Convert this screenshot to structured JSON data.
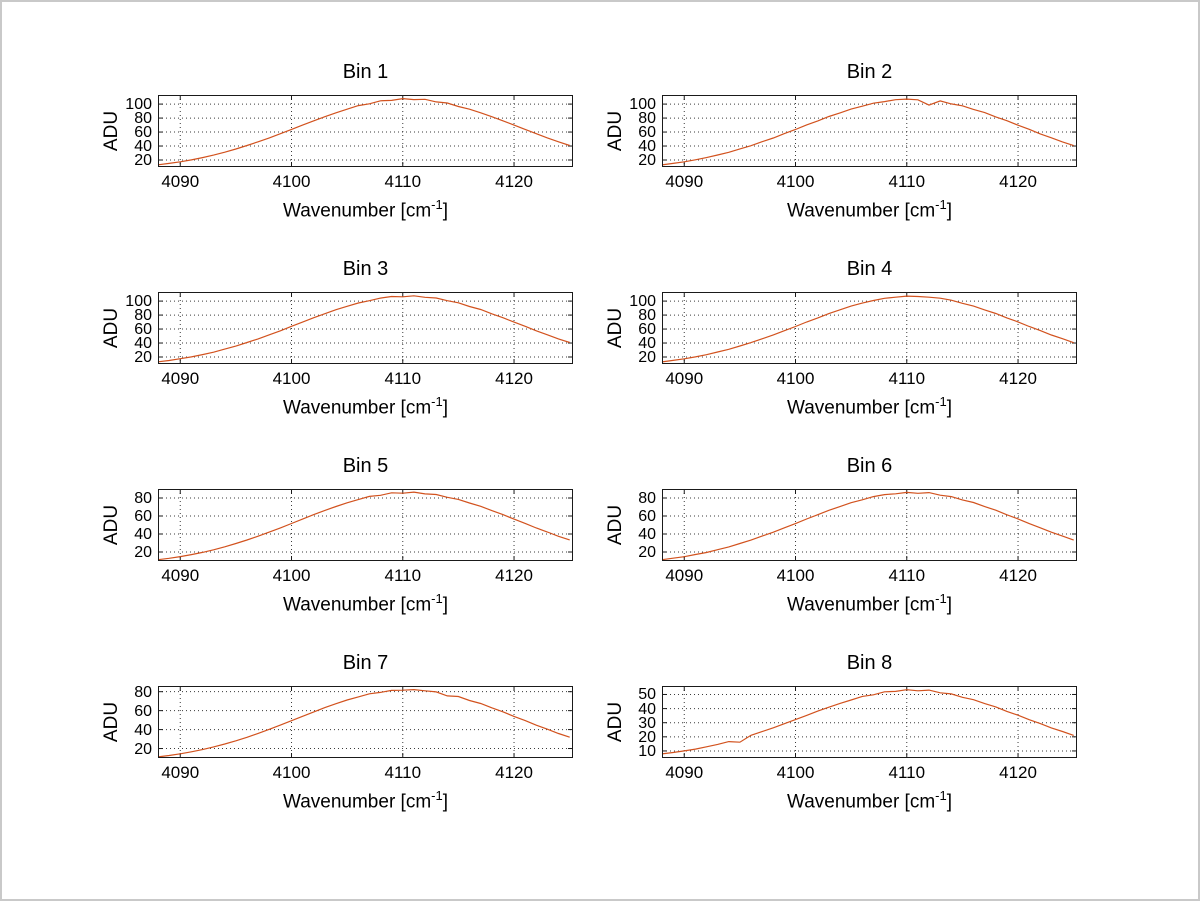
{
  "figure": {
    "background": "#ffffff",
    "border_color": "#c9c9c9",
    "axis_color": "#1a1a1a",
    "grid_color": "#3a3a3a",
    "line_color": "#d2521e",
    "ylabel": "ADU",
    "xlabel_prefix": "Wavenumber [cm",
    "xlabel_sup": "-1",
    "xlabel_suffix": "]"
  },
  "chart_data": [
    {
      "type": "line",
      "title": "Bin 1",
      "xlabel": "Wavenumber [cm^-1]",
      "ylabel": "ADU",
      "grid": "on",
      "x_start": 4088,
      "x_step": 1,
      "xlim": [
        4088,
        4125.3
      ],
      "ylim": [
        10,
        113
      ],
      "xticks": [
        4090,
        4100,
        4110,
        4120
      ],
      "yticks": [
        20,
        40,
        60,
        80,
        100
      ],
      "values": [
        13.1,
        15.1,
        17.5,
        20.2,
        23.4,
        27.0,
        31.2,
        35.7,
        40.7,
        46.0,
        51.7,
        57.6,
        63.8,
        70.0,
        76.1,
        82.0,
        87.6,
        92.7,
        97.8,
        100.4,
        104.7,
        105.3,
        107.8,
        106.4,
        106.8,
        103.1,
        101.6,
        96.5,
        92.7,
        87.6,
        82.0,
        76.1,
        70.0,
        63.8,
        57.6,
        51.7,
        46.0,
        40.7
      ]
    },
    {
      "type": "line",
      "title": "Bin 2",
      "xlabel": "Wavenumber [cm^-1]",
      "ylabel": "ADU",
      "grid": "on",
      "x_start": 4088,
      "x_step": 1,
      "xlim": [
        4088,
        4125.3
      ],
      "ylim": [
        10,
        113
      ],
      "xticks": [
        4090,
        4100,
        4110,
        4120
      ],
      "yticks": [
        20,
        40,
        60,
        80,
        100
      ],
      "values": [
        13.0,
        15.2,
        17.4,
        20.3,
        23.5,
        27.1,
        31.0,
        35.9,
        40.5,
        46.2,
        51.5,
        57.8,
        63.6,
        70.2,
        76.0,
        82.2,
        87.4,
        92.9,
        97.0,
        101.3,
        103.6,
        106.3,
        107.2,
        106.2,
        98.5,
        104.5,
        100.2,
        97.5,
        92.4,
        87.8,
        81.7,
        76.3,
        69.8,
        63.9,
        57.4,
        51.8,
        45.9,
        40.6
      ]
    },
    {
      "type": "line",
      "title": "Bin 3",
      "xlabel": "Wavenumber [cm^-1]",
      "ylabel": "ADU",
      "grid": "on",
      "x_start": 4088,
      "x_step": 1,
      "xlim": [
        4088,
        4125.3
      ],
      "ylim": [
        10,
        113
      ],
      "xticks": [
        4090,
        4100,
        4110,
        4120
      ],
      "yticks": [
        20,
        40,
        60,
        80,
        100
      ],
      "values": [
        13.2,
        15.0,
        17.6,
        20.1,
        23.5,
        26.9,
        31.3,
        35.6,
        40.8,
        45.9,
        51.8,
        57.5,
        63.9,
        69.9,
        76.2,
        81.9,
        87.7,
        92.6,
        97.3,
        100.6,
        104.3,
        106.5,
        106.2,
        107.5,
        105.4,
        104.4,
        100.5,
        97.6,
        92.3,
        87.9,
        81.8,
        76.2,
        69.9,
        63.9,
        57.5,
        51.8,
        45.9,
        40.8
      ]
    },
    {
      "type": "line",
      "title": "Bin 4",
      "xlabel": "Wavenumber [cm^-1]",
      "ylabel": "ADU",
      "grid": "on",
      "x_start": 4088,
      "x_step": 1,
      "xlim": [
        4088,
        4125.3
      ],
      "ylim": [
        10,
        113
      ],
      "xticks": [
        4090,
        4100,
        4110,
        4120
      ],
      "yticks": [
        20,
        40,
        60,
        80,
        100
      ],
      "values": [
        13.0,
        15.1,
        17.4,
        20.2,
        23.3,
        27.1,
        31.1,
        35.8,
        40.6,
        46.1,
        51.6,
        57.7,
        63.7,
        70.1,
        76.0,
        82.1,
        87.5,
        92.8,
        97.1,
        100.9,
        104.0,
        105.6,
        107.1,
        106.6,
        105.5,
        104.2,
        101.2,
        96.9,
        92.9,
        87.4,
        82.2,
        76.0,
        70.2,
        63.6,
        57.8,
        51.5,
        46.2,
        40.5
      ]
    },
    {
      "type": "line",
      "title": "Bin 5",
      "xlabel": "Wavenumber [cm^-1]",
      "ylabel": "ADU",
      "grid": "on",
      "x_start": 4088,
      "x_step": 1,
      "xlim": [
        4088,
        4125.3
      ],
      "ylim": [
        10,
        90
      ],
      "xticks": [
        4090,
        4100,
        4110,
        4120
      ],
      "yticks": [
        20,
        40,
        60,
        80
      ],
      "values": [
        11.5,
        13.0,
        14.9,
        17.1,
        19.6,
        22.5,
        25.8,
        29.4,
        33.3,
        37.6,
        42.1,
        46.8,
        51.7,
        56.6,
        61.5,
        66.2,
        70.6,
        74.7,
        78.2,
        81.8,
        83.0,
        85.8,
        85.3,
        86.6,
        84.6,
        83.9,
        80.8,
        78.5,
        74.4,
        70.8,
        66.0,
        61.6,
        56.5,
        51.8,
        46.7,
        42.2,
        37.5,
        33.4
      ]
    },
    {
      "type": "line",
      "title": "Bin 6",
      "xlabel": "Wavenumber [cm^-1]",
      "ylabel": "ADU",
      "grid": "on",
      "x_start": 4088,
      "x_step": 1,
      "xlim": [
        4088,
        4125.3
      ],
      "ylim": [
        10,
        90
      ],
      "xticks": [
        4090,
        4100,
        4110,
        4120
      ],
      "yticks": [
        20,
        40,
        60,
        80
      ],
      "values": [
        11.4,
        13.1,
        14.8,
        17.2,
        19.5,
        22.6,
        25.7,
        29.5,
        33.2,
        37.7,
        42.0,
        46.9,
        51.6,
        56.7,
        61.4,
        66.3,
        70.5,
        74.8,
        78.0,
        81.5,
        83.8,
        84.7,
        86.2,
        85.2,
        86.0,
        83.1,
        81.6,
        77.9,
        75.0,
        70.4,
        66.4,
        61.3,
        56.8,
        51.5,
        46.9,
        42.0,
        37.7,
        33.2
      ]
    },
    {
      "type": "line",
      "title": "Bin 7",
      "xlabel": "Wavenumber [cm^-1]",
      "ylabel": "ADU",
      "grid": "on",
      "x_start": 4088,
      "x_step": 1,
      "xlim": [
        4088,
        4125.3
      ],
      "ylim": [
        10,
        86
      ],
      "xticks": [
        4090,
        4100,
        4110,
        4120
      ],
      "yticks": [
        20,
        40,
        60,
        80
      ],
      "values": [
        11.2,
        12.6,
        14.4,
        16.5,
        18.9,
        21.7,
        24.8,
        28.2,
        31.9,
        36.0,
        40.3,
        44.7,
        49.4,
        54.0,
        58.7,
        63.2,
        67.3,
        71.2,
        74.5,
        77.8,
        79.2,
        81.4,
        81.6,
        82.2,
        80.9,
        79.8,
        75.5,
        74.9,
        70.7,
        67.5,
        63.0,
        58.8,
        53.9,
        49.5,
        44.6,
        40.4,
        35.9,
        32.0
      ]
    },
    {
      "type": "line",
      "title": "Bin 8",
      "xlabel": "Wavenumber [cm^-1]",
      "ylabel": "ADU",
      "grid": "on",
      "x_start": 4088,
      "x_step": 1,
      "xlim": [
        4088,
        4125.3
      ],
      "ylim": [
        5,
        56
      ],
      "xticks": [
        4090,
        4100,
        4110,
        4120
      ],
      "yticks": [
        10,
        20,
        30,
        40,
        50
      ],
      "values": [
        7.9,
        8.9,
        10.0,
        11.3,
        12.9,
        14.6,
        16.6,
        16.2,
        21.1,
        23.7,
        26.4,
        29.3,
        32.2,
        35.2,
        38.2,
        41.0,
        43.7,
        46.1,
        48.6,
        49.8,
        51.9,
        52.2,
        53.4,
        52.6,
        53.1,
        51.2,
        50.4,
        48.0,
        46.3,
        43.5,
        41.2,
        38.0,
        35.3,
        32.1,
        29.4,
        26.3,
        23.8,
        21.0
      ]
    }
  ]
}
